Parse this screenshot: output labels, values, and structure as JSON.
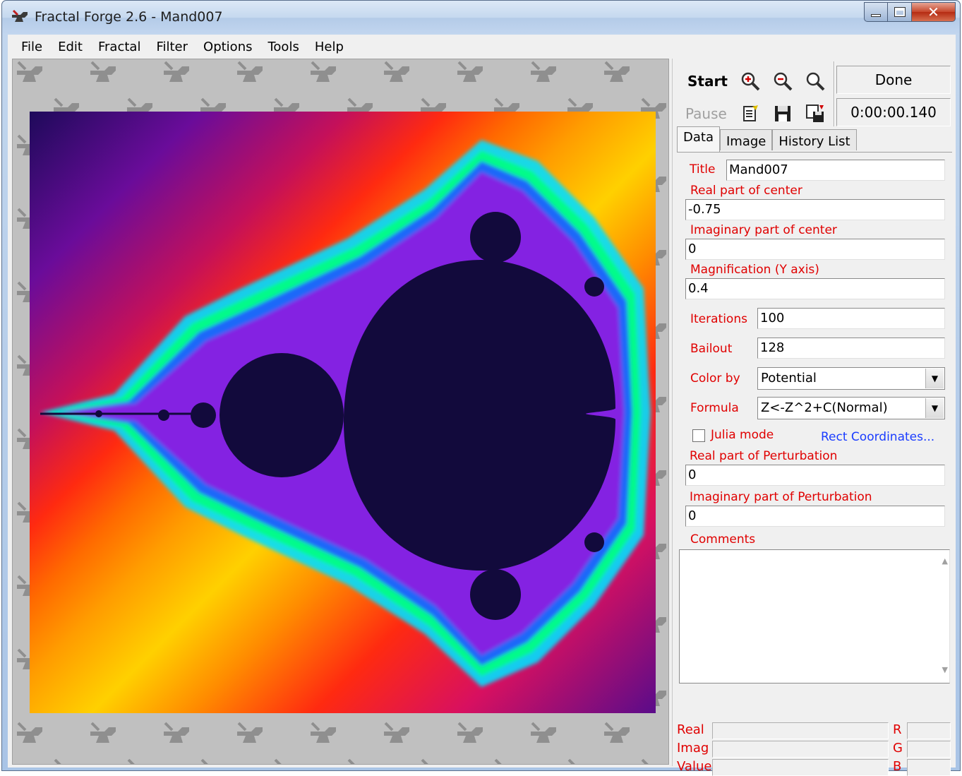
{
  "window": {
    "title": "Fractal Forge 2.6 - Mand007",
    "controls": {
      "minimize": "minimize-icon",
      "maximize": "maximize-icon",
      "close": "✕"
    }
  },
  "menu": [
    "File",
    "Edit",
    "Fractal",
    "Filter",
    "Options",
    "Tools",
    "Help"
  ],
  "toolbar": {
    "start_label": "Start",
    "pause_label": "Pause",
    "status": "Done",
    "elapsed": "0:00:00.140",
    "icons": [
      "zoom-in-icon",
      "zoom-out-icon",
      "zoom-icon",
      "edit-document-icon",
      "save-icon",
      "save-as-icon"
    ]
  },
  "tabs": [
    "Data",
    "Image",
    "History List"
  ],
  "data": {
    "title_label": "Title",
    "title_value": "Mand007",
    "real_center_label": "Real part of center",
    "real_center_value": "-0.75",
    "imag_center_label": "Imaginary part of center",
    "imag_center_value": "0",
    "magnification_label": "Magnification (Y axis)",
    "magnification_value": "0.4",
    "iterations_label": "Iterations",
    "iterations_value": "100",
    "bailout_label": "Bailout",
    "bailout_value": "128",
    "color_by_label": "Color by",
    "color_by_value": "Potential",
    "formula_label": "Formula",
    "formula_value": "Z<-Z^2+C(Normal)",
    "julia_label": "Julia mode",
    "julia_checked": false,
    "rect_link": "Rect Coordinates...",
    "real_pert_label": "Real part of Perturbation",
    "real_pert_value": "0",
    "imag_pert_label": "Imaginary part of Perturbation",
    "imag_pert_value": "0",
    "comments_label": "Comments",
    "comments_value": ""
  },
  "readout": {
    "real_label": "Real",
    "imag_label": "Imag",
    "value_label": "Value",
    "r_label": "R",
    "g_label": "G",
    "b_label": "B"
  },
  "colors": {
    "label_red": "#e00000",
    "link_blue": "#1a3cff",
    "fractal_interior": "#120a3c"
  }
}
